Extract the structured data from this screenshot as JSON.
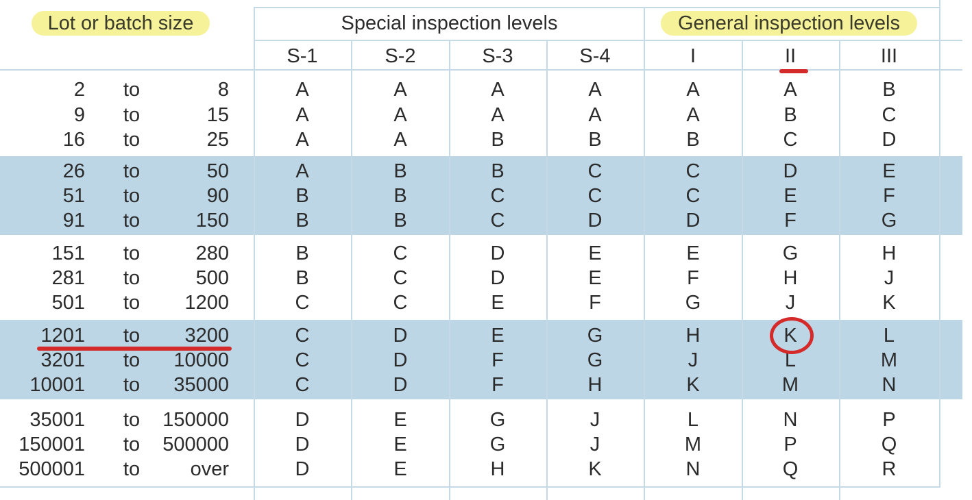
{
  "headers": {
    "lot_size": "Lot or batch size",
    "special": "Special inspection levels",
    "general": "General inspection levels",
    "levels": [
      "S-1",
      "S-2",
      "S-3",
      "S-4",
      "I",
      "II",
      "III"
    ]
  },
  "connector": "to",
  "rows": [
    {
      "from": "2",
      "to": "8",
      "codes": [
        "A",
        "A",
        "A",
        "A",
        "A",
        "A",
        "B"
      ]
    },
    {
      "from": "9",
      "to": "15",
      "codes": [
        "A",
        "A",
        "A",
        "A",
        "A",
        "B",
        "C"
      ]
    },
    {
      "from": "16",
      "to": "25",
      "codes": [
        "A",
        "A",
        "B",
        "B",
        "B",
        "C",
        "D"
      ]
    },
    {
      "from": "26",
      "to": "50",
      "codes": [
        "A",
        "B",
        "B",
        "C",
        "C",
        "D",
        "E"
      ]
    },
    {
      "from": "51",
      "to": "90",
      "codes": [
        "B",
        "B",
        "C",
        "C",
        "C",
        "E",
        "F"
      ]
    },
    {
      "from": "91",
      "to": "150",
      "codes": [
        "B",
        "B",
        "C",
        "D",
        "D",
        "F",
        "G"
      ]
    },
    {
      "from": "151",
      "to": "280",
      "codes": [
        "B",
        "C",
        "D",
        "E",
        "E",
        "G",
        "H"
      ]
    },
    {
      "from": "281",
      "to": "500",
      "codes": [
        "B",
        "C",
        "D",
        "E",
        "F",
        "H",
        "J"
      ]
    },
    {
      "from": "501",
      "to": "1200",
      "codes": [
        "C",
        "C",
        "E",
        "F",
        "G",
        "J",
        "K"
      ]
    },
    {
      "from": "1201",
      "to": "3200",
      "codes": [
        "C",
        "D",
        "E",
        "G",
        "H",
        "K",
        "L"
      ]
    },
    {
      "from": "3201",
      "to": "10000",
      "codes": [
        "C",
        "D",
        "F",
        "G",
        "J",
        "L",
        "M"
      ]
    },
    {
      "from": "10001",
      "to": "35000",
      "codes": [
        "C",
        "D",
        "F",
        "H",
        "K",
        "M",
        "N"
      ]
    },
    {
      "from": "35001",
      "to": "150000",
      "codes": [
        "D",
        "E",
        "G",
        "J",
        "L",
        "N",
        "P"
      ]
    },
    {
      "from": "150001",
      "to": "500000",
      "codes": [
        "D",
        "E",
        "G",
        "J",
        "M",
        "P",
        "Q"
      ]
    },
    {
      "from": "500001",
      "to": "over",
      "codes": [
        "D",
        "E",
        "H",
        "K",
        "N",
        "Q",
        "R"
      ]
    }
  ],
  "highlight": {
    "row_index": 9,
    "level_index": 5
  },
  "colors": {
    "band": "#bcd6e6",
    "grid": "#c5d9e7",
    "marker": "#d42a2a",
    "label_highlight": "#f6f29a"
  }
}
